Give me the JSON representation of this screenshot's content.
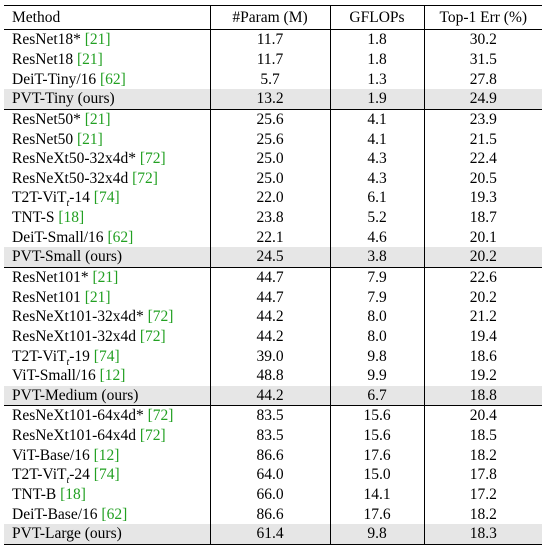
{
  "table": {
    "headers": [
      "Method",
      "#Param (M)",
      "GFLOPs",
      "Top-1 Err (%)"
    ],
    "groups": [
      [
        {
          "name": "ResNet18*",
          "cite": "[21]",
          "params": "11.7",
          "gflops": "1.8",
          "err": "30.2"
        },
        {
          "name": "ResNet18",
          "cite": "[21]",
          "params": "11.7",
          "gflops": "1.8",
          "err": "31.5"
        },
        {
          "name": "DeiT-Tiny/16",
          "cite": "[62]",
          "params": "5.7",
          "gflops": "1.3",
          "err": "27.8"
        },
        {
          "name": "PVT-Tiny (ours)",
          "cite": "",
          "params": "13.2",
          "gflops": "1.9",
          "err": "24.9",
          "ours": true
        }
      ],
      [
        {
          "name": "ResNet50*",
          "cite": "[21]",
          "params": "25.6",
          "gflops": "4.1",
          "err": "23.9"
        },
        {
          "name": "ResNet50",
          "cite": "[21]",
          "params": "25.6",
          "gflops": "4.1",
          "err": "21.5"
        },
        {
          "name": "ResNeXt50-32x4d*",
          "cite": "[72]",
          "params": "25.0",
          "gflops": "4.3",
          "err": "22.4"
        },
        {
          "name": "ResNeXt50-32x4d",
          "cite": "[72]",
          "params": "25.0",
          "gflops": "4.3",
          "err": "20.5"
        },
        {
          "name": "T2T-ViT",
          "sub": "t",
          "suffix": "-14",
          "cite": "[74]",
          "params": "22.0",
          "gflops": "6.1",
          "err": "19.3"
        },
        {
          "name": "TNT-S",
          "cite": "[18]",
          "params": "23.8",
          "gflops": "5.2",
          "err": "18.7"
        },
        {
          "name": "DeiT-Small/16",
          "cite": "[62]",
          "params": "22.1",
          "gflops": "4.6",
          "err": "20.1"
        },
        {
          "name": "PVT-Small (ours)",
          "cite": "",
          "params": "24.5",
          "gflops": "3.8",
          "err": "20.2",
          "ours": true
        }
      ],
      [
        {
          "name": "ResNet101*",
          "cite": "[21]",
          "params": "44.7",
          "gflops": "7.9",
          "err": "22.6"
        },
        {
          "name": "ResNet101",
          "cite": "[21]",
          "params": "44.7",
          "gflops": "7.9",
          "err": "20.2"
        },
        {
          "name": "ResNeXt101-32x4d*",
          "cite": "[72]",
          "params": "44.2",
          "gflops": "8.0",
          "err": "21.2"
        },
        {
          "name": "ResNeXt101-32x4d",
          "cite": "[72]",
          "params": "44.2",
          "gflops": "8.0",
          "err": "19.4"
        },
        {
          "name": "T2T-ViT",
          "sub": "t",
          "suffix": "-19",
          "cite": "[74]",
          "params": "39.0",
          "gflops": "9.8",
          "err": "18.6"
        },
        {
          "name": "ViT-Small/16",
          "cite": "[12]",
          "params": "48.8",
          "gflops": "9.9",
          "err": "19.2"
        },
        {
          "name": "PVT-Medium (ours)",
          "cite": "",
          "params": "44.2",
          "gflops": "6.7",
          "err": "18.8",
          "ours": true
        }
      ],
      [
        {
          "name": "ResNeXt101-64x4d*",
          "cite": "[72]",
          "params": "83.5",
          "gflops": "15.6",
          "err": "20.4"
        },
        {
          "name": "ResNeXt101-64x4d",
          "cite": "[72]",
          "params": "83.5",
          "gflops": "15.6",
          "err": "18.5"
        },
        {
          "name": "ViT-Base/16",
          "cite": "[12]",
          "params": "86.6",
          "gflops": "17.6",
          "err": "18.2"
        },
        {
          "name": "T2T-ViT",
          "sub": "t",
          "suffix": "-24",
          "cite": "[74]",
          "params": "64.0",
          "gflops": "15.0",
          "err": "17.8"
        },
        {
          "name": "TNT-B",
          "cite": "[18]",
          "params": "66.0",
          "gflops": "14.1",
          "err": "17.2"
        },
        {
          "name": "DeiT-Base/16",
          "cite": "[62]",
          "params": "86.6",
          "gflops": "17.6",
          "err": "18.2"
        },
        {
          "name": "PVT-Large (ours)",
          "cite": "",
          "params": "61.4",
          "gflops": "9.8",
          "err": "18.3",
          "ours": true
        }
      ]
    ]
  },
  "colors": {
    "citation": "#22a022",
    "highlight_row": "#e6e6e6"
  }
}
